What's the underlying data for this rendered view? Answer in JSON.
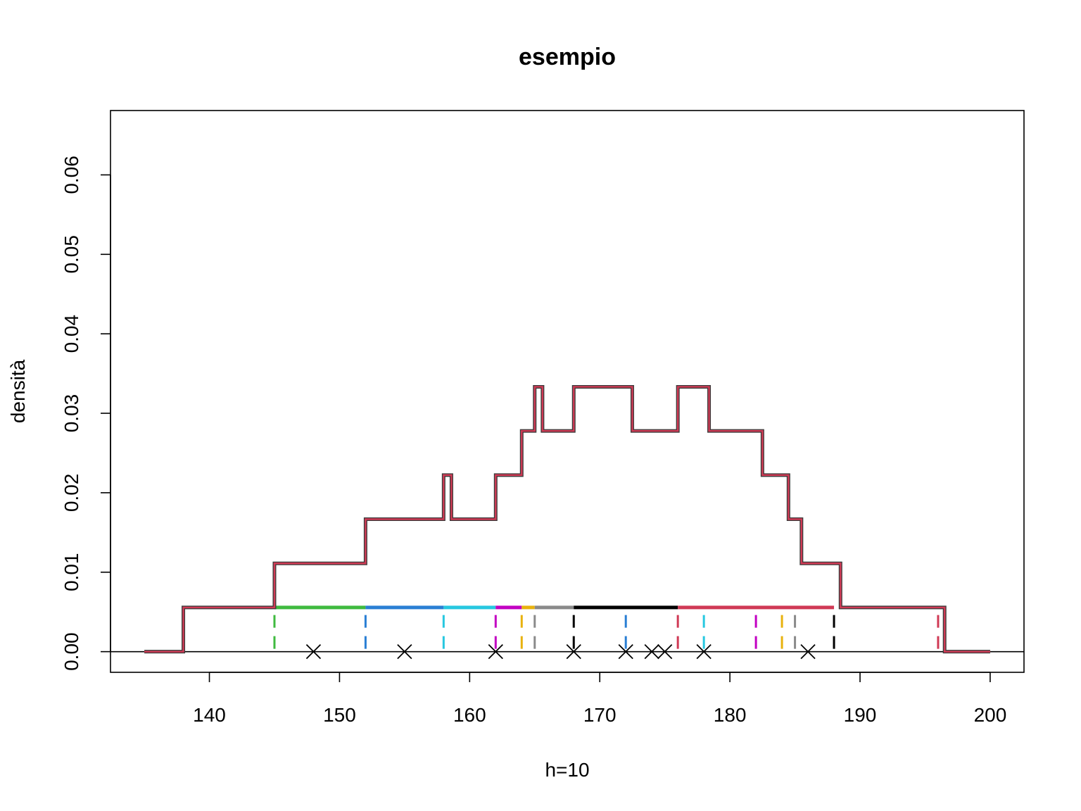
{
  "chart_data": {
    "type": "line",
    "title": "esempio",
    "xlabel": "h=10",
    "ylabel": "densità",
    "xlim": [
      132.4,
      202.6
    ],
    "ylim": [
      -0.0026,
      0.0681
    ],
    "x_ticks": [
      140,
      150,
      160,
      170,
      180,
      190,
      200
    ],
    "y_ticks": [
      0.0,
      0.01,
      0.02,
      0.03,
      0.04,
      0.05,
      0.06
    ],
    "x_tick_labels": [
      "140",
      "150",
      "160",
      "170",
      "180",
      "190",
      "200"
    ],
    "y_tick_labels": [
      "0.00",
      "0.01",
      "0.02",
      "0.03",
      "0.04",
      "0.05",
      "0.06"
    ],
    "grid": false,
    "legend": "none",
    "observations": [
      148,
      155,
      162,
      168,
      172,
      174,
      175,
      178,
      186
    ],
    "kernel_height": 0.00556,
    "kernel_segments": [
      {
        "x0": 145,
        "x1": 152,
        "color": "#3fba3f"
      },
      {
        "x0": 152,
        "x1": 158,
        "color": "#2a7fd4"
      },
      {
        "x0": 158,
        "x1": 162,
        "color": "#27c8e0"
      },
      {
        "x0": 162,
        "x1": 164,
        "color": "#c200c2"
      },
      {
        "x0": 164,
        "x1": 165,
        "color": "#e8b20e"
      },
      {
        "x0": 165,
        "x1": 168,
        "color": "#8a8a8a"
      },
      {
        "x0": 168,
        "x1": 176,
        "color": "#000000"
      },
      {
        "x0": 176,
        "x1": 188,
        "color": "#d03a55"
      }
    ],
    "kernel_edges": [
      {
        "x": 145,
        "color": "#3fba3f"
      },
      {
        "x": 152,
        "color": "#2a7fd4"
      },
      {
        "x": 158,
        "color": "#27c8e0"
      },
      {
        "x": 162,
        "color": "#c200c2"
      },
      {
        "x": 164,
        "color": "#e8b20e"
      },
      {
        "x": 165,
        "color": "#8a8a8a"
      },
      {
        "x": 168,
        "color": "#000000"
      },
      {
        "x": 172,
        "color": "#2a7fd4"
      },
      {
        "x": 176,
        "color": "#d03a55"
      },
      {
        "x": 178,
        "color": "#27c8e0"
      },
      {
        "x": 182,
        "color": "#c200c2"
      },
      {
        "x": 184,
        "color": "#e8b20e"
      },
      {
        "x": 185,
        "color": "#8a8a8a"
      },
      {
        "x": 188,
        "color": "#000000"
      },
      {
        "x": 196,
        "color": "#d03a55"
      }
    ],
    "density_series": {
      "name": "",
      "color": "#d03a55",
      "outline_color": "#3a3a3a",
      "x": [
        135,
        138,
        138,
        145,
        145,
        152,
        152,
        158,
        158,
        158.6,
        158.6,
        162,
        162,
        164,
        164,
        165,
        165,
        165.6,
        165.6,
        168,
        168,
        172.5,
        172.5,
        176,
        176,
        178.4,
        178.4,
        182.5,
        182.5,
        184.5,
        184.5,
        185.5,
        185.5,
        188.5,
        188.5,
        196.5,
        196.5,
        200
      ],
      "y": [
        0,
        0,
        0.00556,
        0.00556,
        0.01111,
        0.01111,
        0.01667,
        0.01667,
        0.02222,
        0.02222,
        0.01667,
        0.01667,
        0.02222,
        0.02222,
        0.02778,
        0.02778,
        0.03333,
        0.03333,
        0.02778,
        0.02778,
        0.03333,
        0.03333,
        0.02778,
        0.02778,
        0.03333,
        0.03333,
        0.02778,
        0.02778,
        0.02222,
        0.02222,
        0.01667,
        0.01667,
        0.01111,
        0.01111,
        0.00556,
        0.00556,
        0,
        0
      ]
    }
  }
}
